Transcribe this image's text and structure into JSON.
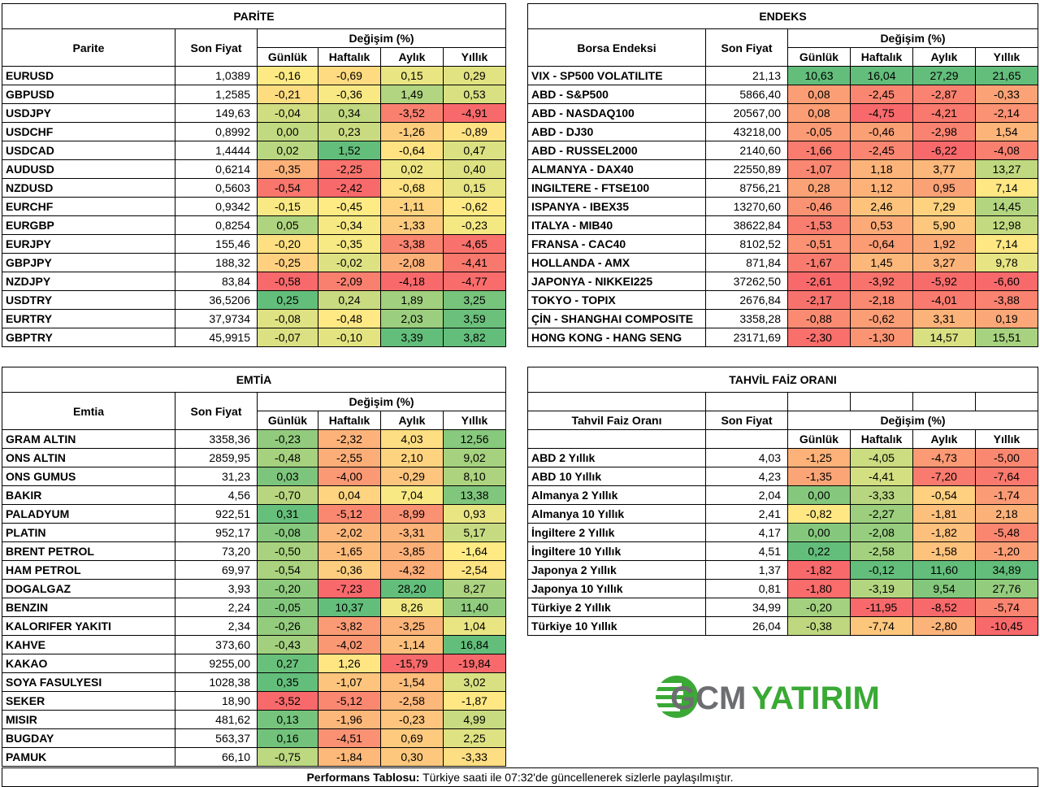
{
  "footer": {
    "bold": "Performans Tablosu:",
    "text": " Türkiye saati ile 07:32'de güncellenerek sizlerle paylaşılmıştır."
  },
  "logo": {
    "text_gcm": "GCM",
    "text_yatirim": "YATIRIM",
    "colors": {
      "grey": "#6d6e71",
      "green": "#3aa935"
    }
  },
  "headers": {
    "son_fiyat": "Son Fiyat",
    "degisim": "Değişim (%)",
    "gunluk": "Günlük",
    "haftalik": "Haftalık",
    "aylik": "Aylık",
    "yillik": "Yıllık"
  },
  "parite": {
    "title": "PARİTE",
    "col": "Parite",
    "rows": [
      [
        "EURUSD",
        "1,0389",
        "-0,16",
        "-0,69",
        "0,15",
        "0,29"
      ],
      [
        "GBPUSD",
        "1,2585",
        "-0,21",
        "-0,36",
        "1,49",
        "0,53"
      ],
      [
        "USDJPY",
        "149,63",
        "-0,04",
        "0,34",
        "-3,52",
        "-4,91"
      ],
      [
        "USDCHF",
        "0,8992",
        "0,00",
        "0,23",
        "-1,26",
        "-0,89"
      ],
      [
        "USDCAD",
        "1,4444",
        "0,02",
        "1,52",
        "-0,64",
        "0,47"
      ],
      [
        "AUDUSD",
        "0,6214",
        "-0,35",
        "-2,25",
        "0,02",
        "0,40"
      ],
      [
        "NZDUSD",
        "0,5603",
        "-0,54",
        "-2,42",
        "-0,68",
        "0,15"
      ],
      [
        "EURCHF",
        "0,9342",
        "-0,15",
        "-0,45",
        "-1,11",
        "-0,62"
      ],
      [
        "EURGBP",
        "0,8254",
        "0,05",
        "-0,34",
        "-1,33",
        "-0,23"
      ],
      [
        "EURJPY",
        "155,46",
        "-0,20",
        "-0,35",
        "-3,38",
        "-4,65"
      ],
      [
        "GBPJPY",
        "188,32",
        "-0,25",
        "-0,02",
        "-2,08",
        "-4,41"
      ],
      [
        "NZDJPY",
        "83,84",
        "-0,58",
        "-2,09",
        "-4,18",
        "-4,77"
      ],
      [
        "USDTRY",
        "36,5206",
        "0,25",
        "0,24",
        "1,89",
        "3,25"
      ],
      [
        "EURTRY",
        "37,9734",
        "-0,08",
        "-0,48",
        "2,03",
        "3,59"
      ],
      [
        "GBPTRY",
        "45,9915",
        "-0,07",
        "-0,10",
        "3,39",
        "3,82"
      ]
    ]
  },
  "endeks": {
    "title": "ENDEKS",
    "col": "Borsa Endeksi",
    "rows": [
      [
        "VIX  - SP500 VOLATILITE",
        "21,13",
        "10,63",
        "16,04",
        "27,29",
        "21,65"
      ],
      [
        "ABD - S&P500",
        "5866,40",
        "0,08",
        "-2,45",
        "-2,87",
        "-0,33"
      ],
      [
        "ABD - NASDAQ100",
        "20567,00",
        "0,08",
        "-4,75",
        "-4,21",
        "-2,14"
      ],
      [
        "ABD - DJ30",
        "43218,00",
        "-0,05",
        "-0,46",
        "-2,98",
        "1,54"
      ],
      [
        "ABD - RUSSEL2000",
        "2140,60",
        "-1,66",
        "-2,45",
        "-6,22",
        "-4,08"
      ],
      [
        "ALMANYA - DAX40",
        "22550,89",
        "-1,07",
        "1,18",
        "3,77",
        "13,27"
      ],
      [
        "INGILTERE - FTSE100",
        "8756,21",
        "0,28",
        "1,12",
        "0,95",
        "7,14"
      ],
      [
        "ISPANYA - IBEX35",
        "13270,60",
        "-0,46",
        "2,46",
        "7,29",
        "14,45"
      ],
      [
        "ITALYA - MIB40",
        "38622,84",
        "-1,53",
        "0,53",
        "5,90",
        "12,98"
      ],
      [
        "FRANSA - CAC40",
        "8102,52",
        "-0,51",
        "-0,64",
        "1,92",
        "7,14"
      ],
      [
        "HOLLANDA - AMX",
        "871,84",
        "-1,67",
        "1,45",
        "3,27",
        "9,78"
      ],
      [
        "JAPONYA - NIKKEI225",
        "37262,50",
        "-2,61",
        "-3,92",
        "-5,92",
        "-6,60"
      ],
      [
        "TOKYO - TOPIX",
        "2676,84",
        "-2,17",
        "-2,18",
        "-4,01",
        "-3,88"
      ],
      [
        "ÇİN - SHANGHAI COMPOSITE",
        "3358,28",
        "-0,88",
        "-0,62",
        "3,31",
        "0,19"
      ],
      [
        "HONG KONG - HANG SENG",
        "23171,69",
        "-2,30",
        "-1,30",
        "14,57",
        "15,51"
      ]
    ]
  },
  "emtia": {
    "title": "EMTİA",
    "col": "Emtia",
    "rows": [
      [
        "GRAM ALTIN",
        "3358,36",
        "-0,23",
        "-2,32",
        "4,03",
        "12,56"
      ],
      [
        "ONS ALTIN",
        "2859,95",
        "-0,48",
        "-2,55",
        "2,10",
        "9,02"
      ],
      [
        "ONS GUMUS",
        "31,23",
        "0,03",
        "-4,00",
        "-0,29",
        "8,10"
      ],
      [
        "BAKIR",
        "4,56",
        "-0,70",
        "0,04",
        "7,04",
        "13,38"
      ],
      [
        "PALADYUM",
        "922,51",
        "0,31",
        "-5,12",
        "-8,99",
        "0,93"
      ],
      [
        "PLATIN",
        "952,17",
        "-0,08",
        "-2,02",
        "-3,31",
        "5,17"
      ],
      [
        "BRENT PETROL",
        "73,20",
        "-0,50",
        "-1,65",
        "-3,85",
        "-1,64"
      ],
      [
        "HAM PETROL",
        "69,97",
        "-0,54",
        "-0,36",
        "-4,32",
        "-2,54"
      ],
      [
        "DOGALGAZ",
        "3,93",
        "-0,20",
        "-7,23",
        "28,20",
        "8,27"
      ],
      [
        "BENZIN",
        "2,24",
        "-0,05",
        "10,37",
        "8,26",
        "11,40"
      ],
      [
        "KALORIFER YAKITI",
        "2,34",
        "-0,26",
        "-3,82",
        "-3,25",
        "1,04"
      ],
      [
        "KAHVE",
        "373,60",
        "-0,43",
        "-4,02",
        "-1,14",
        "16,84"
      ],
      [
        "KAKAO",
        "9255,00",
        "0,27",
        "1,26",
        "-15,79",
        "-19,84"
      ],
      [
        "SOYA FASULYESI",
        "1028,38",
        "0,35",
        "-1,07",
        "-1,54",
        "3,02"
      ],
      [
        "SEKER",
        "18,90",
        "-3,52",
        "-5,12",
        "-2,58",
        "-1,87"
      ],
      [
        "MISIR",
        "481,62",
        "0,13",
        "-1,96",
        "-0,23",
        "4,99"
      ],
      [
        "BUGDAY",
        "563,37",
        "0,16",
        "-4,51",
        "0,69",
        "2,25"
      ],
      [
        "PAMUK",
        "66,10",
        "-0,75",
        "-1,84",
        "0,30",
        "-3,33"
      ]
    ]
  },
  "tahvil": {
    "title": "TAHVİL FAİZ ORANI",
    "col": "Tahvil Faiz Oranı",
    "rows": [
      [
        "ABD 2 Yıllık",
        "4,03",
        "-1,25",
        "-4,05",
        "-4,73",
        "-5,00"
      ],
      [
        "ABD 10 Yıllık",
        "4,23",
        "-1,35",
        "-4,41",
        "-7,20",
        "-7,64"
      ],
      [
        "Almanya 2 Yıllık",
        "2,04",
        "0,00",
        "-3,33",
        "-0,54",
        "-1,74"
      ],
      [
        "Almanya 10 Yıllık",
        "2,41",
        "-0,82",
        "-2,27",
        "-1,81",
        "2,18"
      ],
      [
        "İngiltere 2 Yıllık",
        "4,17",
        "0,00",
        "-2,08",
        "-1,82",
        "-5,48"
      ],
      [
        "İngiltere 10 Yıllık",
        "4,51",
        "0,22",
        "-2,58",
        "-1,58",
        "-1,20"
      ],
      [
        "Japonya 2 Yıllık",
        "1,37",
        "-1,82",
        "-0,12",
        "11,60",
        "34,89"
      ],
      [
        "Japonya 10 Yıllık",
        "0,81",
        "-1,80",
        "-3,19",
        "9,54",
        "27,76"
      ],
      [
        "Türkiye 2 Yıllık",
        "34,99",
        "-0,20",
        "-11,95",
        "-8,52",
        "-5,74"
      ],
      [
        "Türkiye 10 Yıllık",
        "26,04",
        "-0,38",
        "-7,74",
        "-2,80",
        "-10,45"
      ]
    ]
  },
  "scale": {
    "low": "#f8696b",
    "mid": "#ffeb84",
    "high": "#63be7b"
  }
}
